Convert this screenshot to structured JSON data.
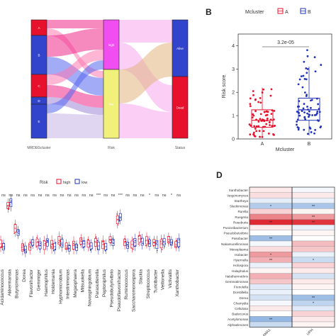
{
  "panel_labels": {
    "b": "B",
    "d": "D"
  },
  "chart_data": [
    {
      "type": "sankey",
      "panel": "A",
      "axis_labels": [
        "MRDEGcluster",
        "Risk",
        "Status"
      ],
      "nodes": [
        {
          "name": "A",
          "axis": 0,
          "color": "#e8112d"
        },
        {
          "name": "B",
          "axis": 0,
          "color": "#3344cc"
        },
        {
          "name": "C",
          "axis": 0,
          "color": "#e8112d"
        },
        {
          "name": "D",
          "axis": 0,
          "color": "#3344cc"
        },
        {
          "name": "E",
          "axis": 0,
          "color": "#3344cc"
        },
        {
          "name": "high",
          "axis": 1,
          "color": "#f04ef0"
        },
        {
          "name": "low",
          "axis": 1,
          "color": "#f0f07a"
        },
        {
          "name": "Alive",
          "axis": 2,
          "color": "#3344cc"
        },
        {
          "name": "Dead",
          "axis": 2,
          "color": "#e8112d"
        }
      ],
      "flow_colors": [
        "#ef2a8a",
        "#5566ee",
        "#ff78b0",
        "#9f86d9",
        "#c8b4e6",
        "#f7a6ee",
        "#e2b57f"
      ]
    },
    {
      "type": "box",
      "panel": "B",
      "legend_title": "Mcluster",
      "legend": [
        "A",
        "B"
      ],
      "xlabel": "Mcluster",
      "ylabel": "Risk score",
      "categories": [
        "A",
        "B"
      ],
      "colors": [
        "#e8112d",
        "#2233bb"
      ],
      "yticks": [
        0,
        1,
        2,
        3,
        4
      ],
      "ylim": [
        0,
        4.5
      ],
      "pvalue_label": "3.2e-05",
      "series": [
        {
          "name": "A",
          "q1": 0.5,
          "median": 0.8,
          "q3": 1.25,
          "whisker_low": 0.05,
          "whisker_high": 2.2
        },
        {
          "name": "B",
          "q1": 0.8,
          "median": 1.25,
          "q3": 1.75,
          "whisker_low": 0.15,
          "whisker_high": 3.1
        }
      ]
    },
    {
      "type": "box",
      "panel": "C",
      "legend_title": "Risk",
      "legend": [
        "high",
        "low"
      ],
      "colors": [
        "#e8112d",
        "#2233bb"
      ],
      "categories": [
        "Acidaminococcus",
        "Akkermansia",
        "Butyricimonas",
        "Dorea",
        "Flavonifractor",
        "Gemmiger",
        "Haemophilus",
        "Holdemania",
        "Hyphomicrobium",
        "Intestinimonas",
        "Megasphaera",
        "Mitsuokella",
        "Novosphingobium",
        "Parasutterella",
        "Peptoniphilus",
        "Pseudobutyrivibrio",
        "Pseudoflavonifractor",
        "Ruminococcus",
        "Saccharomonospora",
        "Slackia",
        "Streptococcus",
        "Turicibacter",
        "Veillonella",
        "Victivallis",
        "Xanthobacter"
      ],
      "significance": [
        "ns",
        "ns",
        "ns",
        "ns",
        "ns",
        "ns",
        "ns",
        "ns",
        "ns",
        "ns",
        "ns",
        "ns",
        "ns",
        "***",
        "ns",
        "ns",
        "***",
        "ns",
        "ns",
        "ns",
        "*",
        "ns",
        "ns",
        "*",
        "ns"
      ],
      "series": [
        {
          "name": "high",
          "medians": [
            0.28,
            0.82,
            0.5,
            0.23,
            0.24,
            0.3,
            0.26,
            0.27,
            0.33,
            0.25,
            0.26,
            0.32,
            0.28,
            0.3,
            0.27,
            0.34,
            0.62,
            0.3,
            0.27,
            0.35,
            0.33,
            0.3,
            0.28,
            0.34,
            0.27
          ]
        },
        {
          "name": "low",
          "medians": [
            0.24,
            0.86,
            0.44,
            0.2,
            0.3,
            0.26,
            0.3,
            0.24,
            0.29,
            0.22,
            0.23,
            0.28,
            0.25,
            0.25,
            0.24,
            0.3,
            0.66,
            0.26,
            0.3,
            0.31,
            0.29,
            0.27,
            0.31,
            0.3,
            0.3
          ]
        }
      ]
    },
    {
      "type": "heatmap",
      "panel": "D",
      "columns": [
        "LAMA1",
        "UPH"
      ],
      "rows": [
        "Xanthobacter",
        "Veigonomyces",
        "Startheya",
        "Slackimonas",
        "Rurella",
        "Ruegeria",
        "Roseburia",
        "Puniceibacterium",
        "Pseudobutvirbrio",
        "Pasobacter",
        "Nakamurellimonas",
        "Mesoplasma",
        "Isobacter",
        "Hyarmella",
        "Holospora",
        "Halaphalus",
        "Halothermothrix",
        "Gemmatimonas",
        "Frenolella",
        "Dorstillella",
        "Dorea",
        "Chamydia",
        "Cellulosa",
        "Badecuvus",
        "Acetylomonas",
        "Alphaeknones"
      ],
      "values": [
        [
          0.1,
          -0.05
        ],
        [
          0.15,
          0.1
        ],
        [
          -0.12,
          -0.1
        ],
        [
          -0.35,
          -0.4
        ],
        [
          0.2,
          0.05
        ],
        [
          0.55,
          0.45
        ],
        [
          0.95,
          0.9
        ],
        [
          0.1,
          -0.1
        ],
        [
          0.0,
          0.05
        ],
        [
          -0.45,
          0.0
        ],
        [
          -0.05,
          0.3
        ],
        [
          0.15,
          0.25
        ],
        [
          0.45,
          -0.1
        ],
        [
          0.35,
          -0.25
        ],
        [
          -0.1,
          0.2
        ],
        [
          0.05,
          0.1
        ],
        [
          0.35,
          -0.2
        ],
        [
          0.25,
          0.1
        ],
        [
          -0.15,
          0.05
        ],
        [
          -0.1,
          0.0
        ],
        [
          -0.2,
          -0.45
        ],
        [
          -0.05,
          -0.3
        ],
        [
          0.1,
          -0.15
        ],
        [
          0.0,
          0.2
        ],
        [
          -0.5,
          0.1
        ],
        [
          -0.25,
          0.05
        ]
      ],
      "stars": [
        [
          "",
          ""
        ],
        [
          "",
          ""
        ],
        [
          "",
          ""
        ],
        [
          "*",
          "**"
        ],
        [
          "",
          ""
        ],
        [
          "",
          "**"
        ],
        [
          "**",
          "**"
        ],
        [
          "",
          ""
        ],
        [
          "",
          ""
        ],
        [
          "**",
          ""
        ],
        [
          "",
          ""
        ],
        [
          "",
          ""
        ],
        [
          "*",
          ""
        ],
        [
          "**",
          "*"
        ],
        [
          "",
          ""
        ],
        [
          "",
          ""
        ],
        [
          "",
          ""
        ],
        [
          "",
          ""
        ],
        [
          "",
          ""
        ],
        [
          "",
          ""
        ],
        [
          "",
          "**"
        ],
        [
          "",
          "*"
        ],
        [
          "",
          ""
        ],
        [
          "",
          ""
        ],
        [
          "**",
          ""
        ],
        [
          "",
          ""
        ]
      ]
    }
  ]
}
